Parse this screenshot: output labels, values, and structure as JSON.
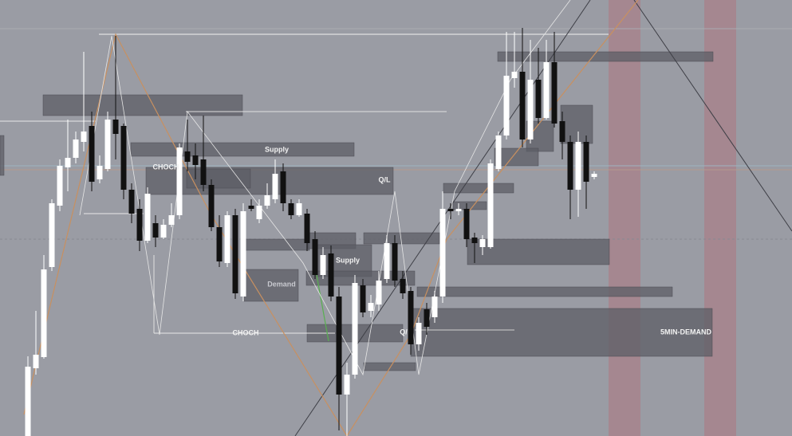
{
  "annotations": [
    {
      "label": "Supply"
    },
    {
      "label": "CHOCH"
    },
    {
      "label": "Q/L"
    },
    {
      "label": "Supply"
    },
    {
      "label": "Demand"
    },
    {
      "label": "CHOCH"
    },
    {
      "label": "Q/"
    },
    {
      "label": "5MIN-DEMAND"
    }
  ]
}
